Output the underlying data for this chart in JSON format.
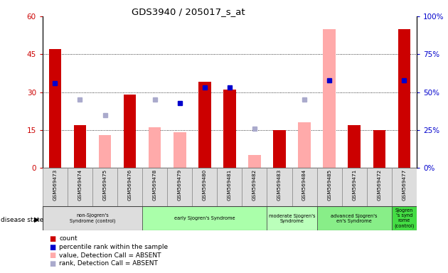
{
  "title": "GDS3940 / 205017_s_at",
  "samples": [
    "GSM569473",
    "GSM569474",
    "GSM569475",
    "GSM569476",
    "GSM569478",
    "GSM569479",
    "GSM569480",
    "GSM569481",
    "GSM569482",
    "GSM569483",
    "GSM569484",
    "GSM569485",
    "GSM569471",
    "GSM569472",
    "GSM569477"
  ],
  "count_values": [
    47,
    17,
    0,
    29,
    0,
    0,
    34,
    31,
    0,
    15,
    0,
    0,
    17,
    15,
    55
  ],
  "rank_values": [
    56,
    0,
    0,
    0,
    0,
    43,
    53,
    53,
    0,
    0,
    0,
    58,
    0,
    0,
    58
  ],
  "absent_value_values": [
    0,
    0,
    13,
    0,
    16,
    14,
    0,
    0,
    5,
    0,
    18,
    55,
    0,
    0,
    0
  ],
  "absent_rank_values": [
    0,
    45,
    35,
    0,
    45,
    0,
    0,
    0,
    26,
    0,
    45,
    0,
    0,
    0,
    0
  ],
  "ylim_left": [
    0,
    60
  ],
  "ylim_right": [
    0,
    100
  ],
  "yticks_left": [
    0,
    15,
    30,
    45,
    60
  ],
  "yticks_right": [
    0,
    25,
    50,
    75,
    100
  ],
  "ytick_labels_left": [
    "0",
    "15",
    "30",
    "45",
    "60"
  ],
  "ytick_labels_right": [
    "0%",
    "25%",
    "50%",
    "75%",
    "100%"
  ],
  "count_color": "#cc0000",
  "rank_color": "#0000cc",
  "absent_value_color": "#ffaaaa",
  "absent_rank_color": "#aaaacc",
  "tick_color_left": "#cc0000",
  "tick_color_right": "#0000cc",
  "group_defs": [
    [
      0,
      3,
      "#dddddd",
      "non-Sjogren's\nSyndrome (control)"
    ],
    [
      4,
      8,
      "#aaffaa",
      "early Sjogren's Syndrome"
    ],
    [
      9,
      10,
      "#bbffbb",
      "moderate Sjogren's\nSyndrome"
    ],
    [
      11,
      13,
      "#88ee88",
      "advanced Sjogren's\nen's Syndrome"
    ],
    [
      14,
      14,
      "#44dd44",
      "Sjogren\n's synd\nrome\n(control)"
    ]
  ],
  "legend_items": [
    [
      "#cc0000",
      "count"
    ],
    [
      "#0000cc",
      "percentile rank within the sample"
    ],
    [
      "#ffaaaa",
      "value, Detection Call = ABSENT"
    ],
    [
      "#aaaacc",
      "rank, Detection Call = ABSENT"
    ]
  ]
}
